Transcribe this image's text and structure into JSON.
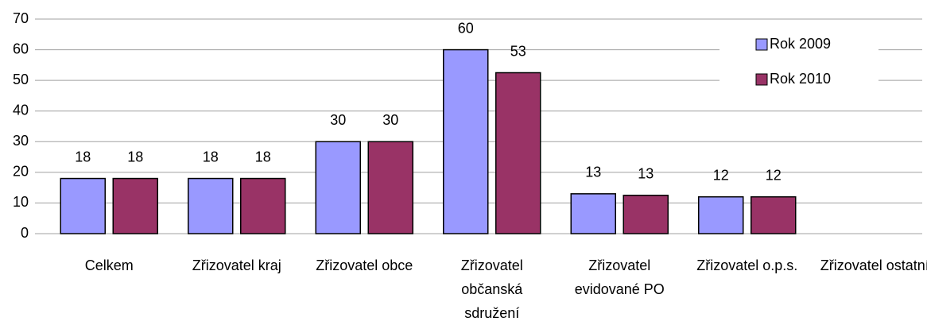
{
  "chart_data": {
    "type": "bar",
    "categories": [
      "Celkem",
      "Zřizovatel kraj",
      "Zřizovatel obce",
      "Zřizovatel občanská sdružení",
      "Zřizovatel evidované PO",
      "Zřizovatel o.p.s.",
      "Zřizovatel ostatní"
    ],
    "series": [
      {
        "name": "Rok 2009",
        "color": "#9999ff",
        "values": [
          18,
          18,
          30,
          60,
          13,
          12,
          null
        ]
      },
      {
        "name": "Rok 2010",
        "color": "#993366",
        "values": [
          18,
          18,
          30,
          52.5,
          12.5,
          12,
          null
        ],
        "value_labels": [
          "18",
          "18",
          "30",
          "53",
          "13",
          "12",
          null
        ]
      }
    ],
    "ylim": [
      0,
      70
    ],
    "yticks": [
      0,
      10,
      20,
      30,
      40,
      50,
      60,
      70
    ],
    "grid": true,
    "legend": "upper right"
  }
}
